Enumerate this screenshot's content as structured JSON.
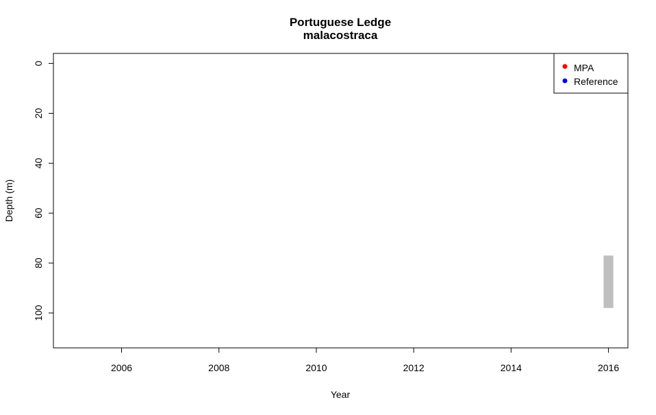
{
  "chart_data": {
    "type": "range-bar",
    "title": "Portuguese Ledge",
    "subtitle": "malacostraca",
    "xlabel": "Year",
    "ylabel": "Depth (m)",
    "xlim": [
      2004.6,
      2016.4
    ],
    "ylim": [
      114,
      -4
    ],
    "y_reversed": true,
    "xticks": [
      2006,
      2008,
      2010,
      2012,
      2014,
      2016
    ],
    "yticks": [
      0,
      20,
      40,
      60,
      80,
      100
    ],
    "legend": {
      "position": "top-right",
      "entries": [
        {
          "label": "MPA",
          "color": "#ff0000"
        },
        {
          "label": "Reference",
          "color": "#0000ff"
        }
      ]
    },
    "bars": [
      {
        "x": 2016,
        "depth_min": 77,
        "depth_max": 98,
        "color": "#bebebe"
      }
    ],
    "points": []
  }
}
